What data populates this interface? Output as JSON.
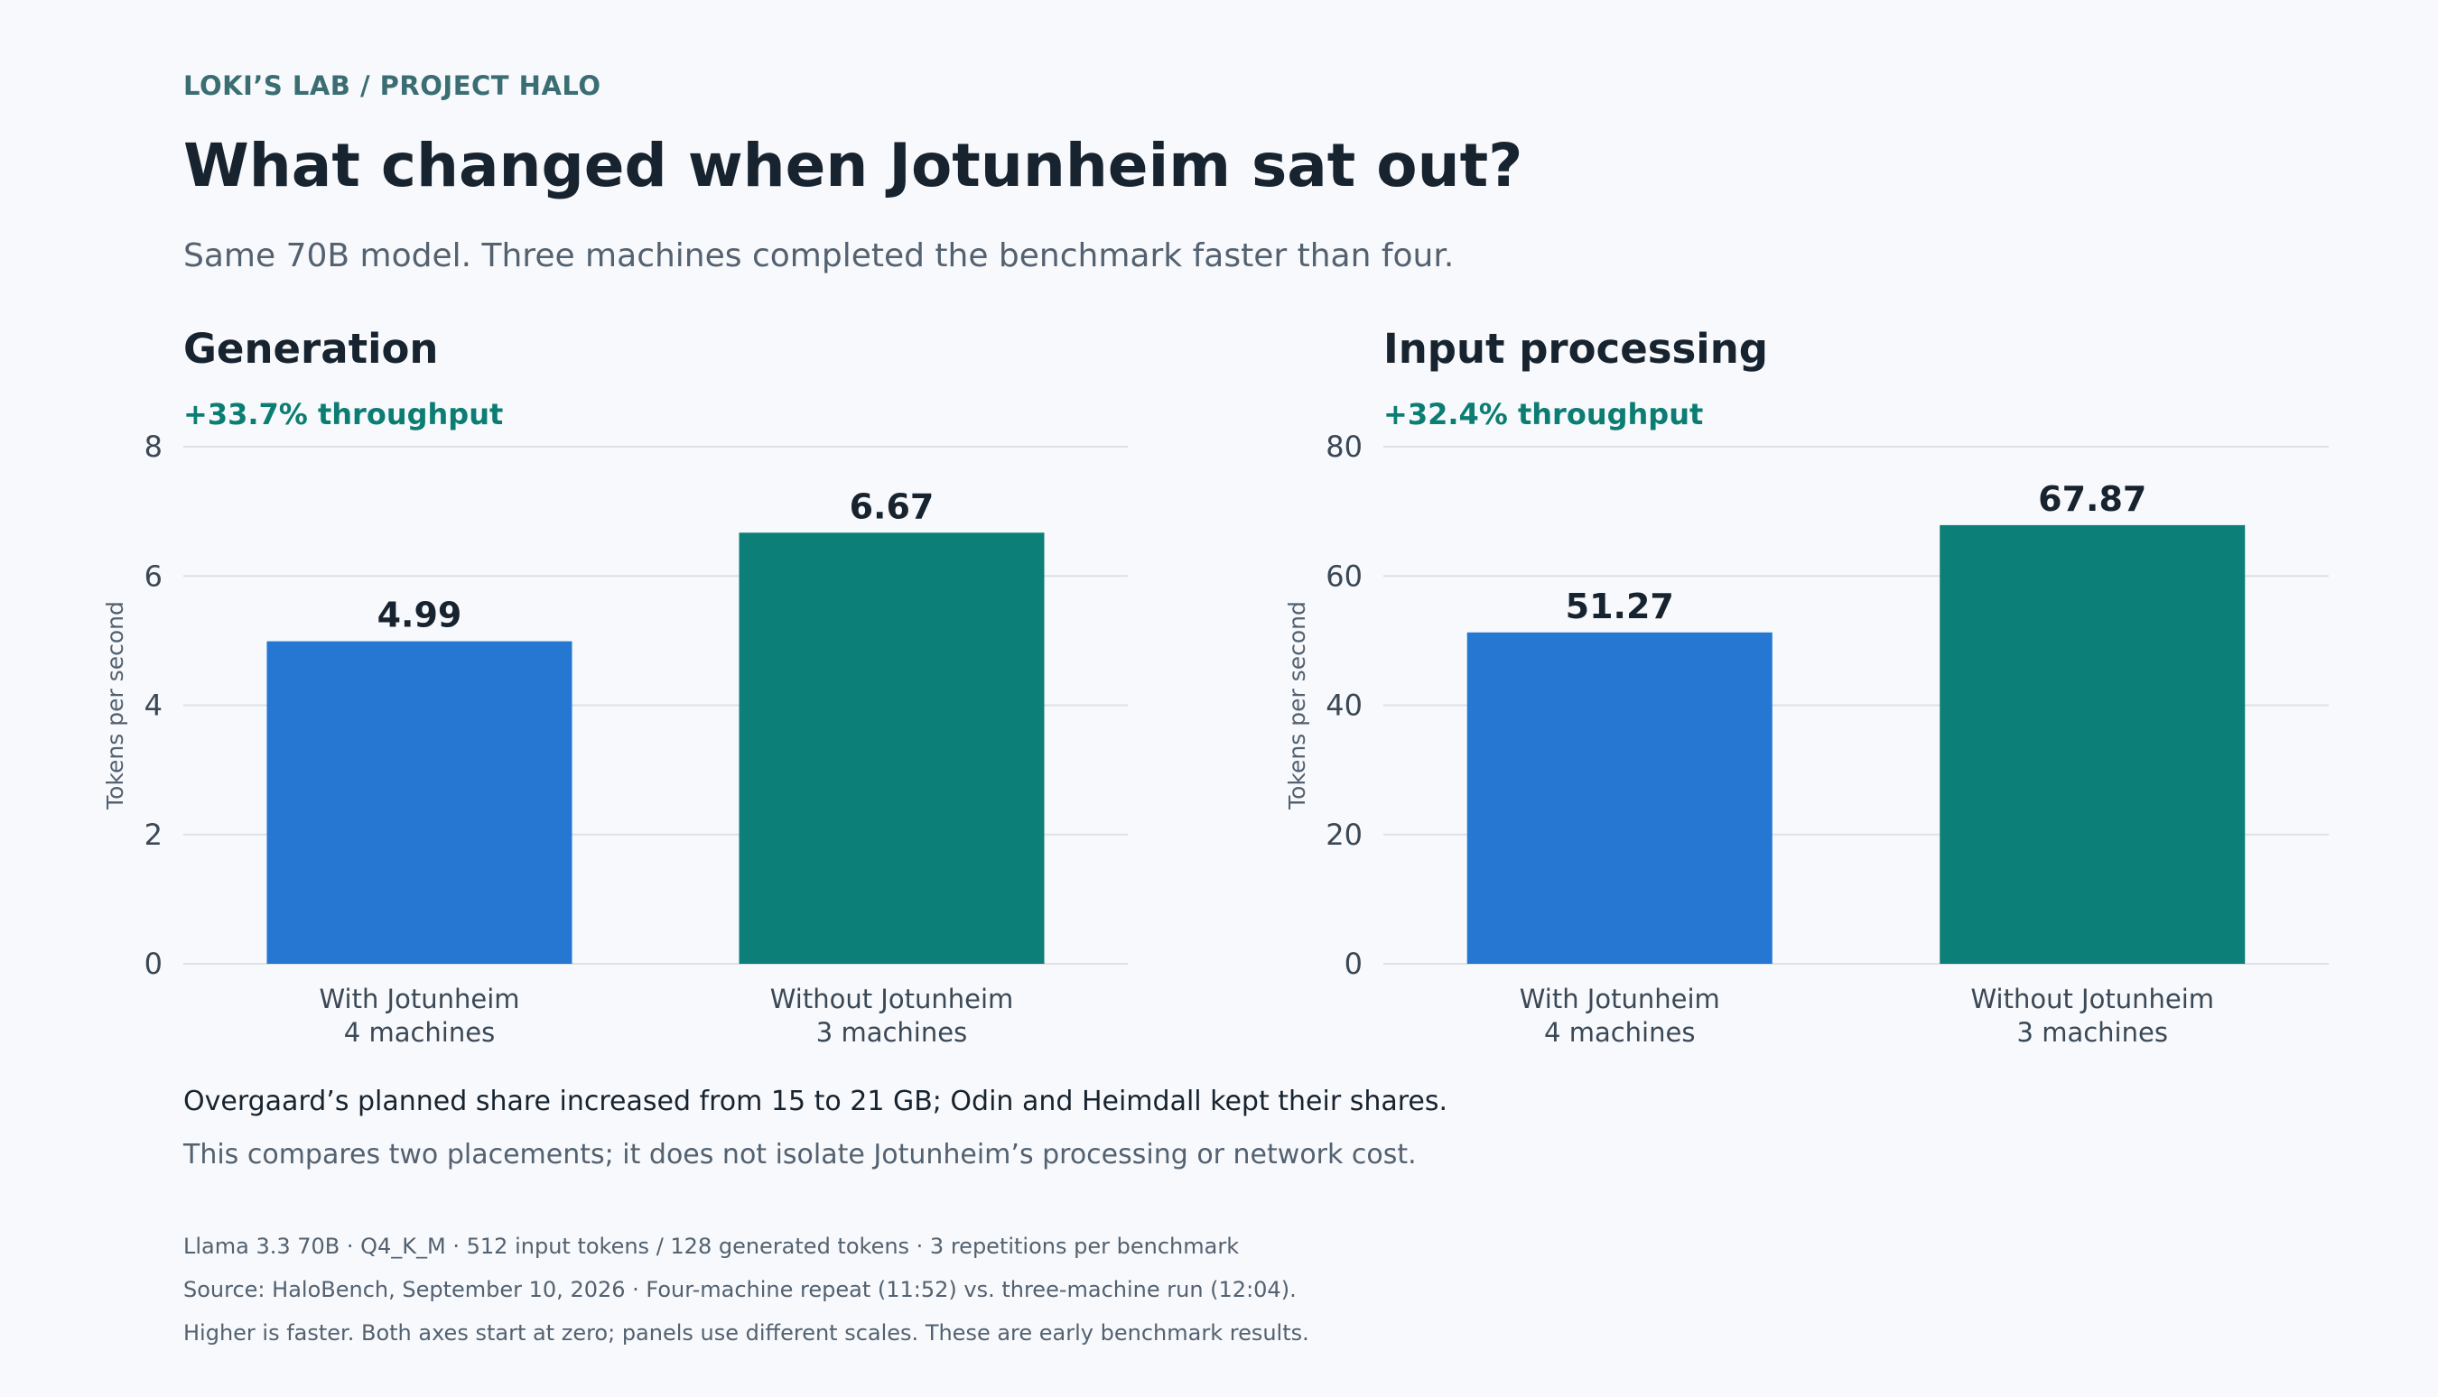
{
  "header": {
    "breadcrumb": "LOKI’S LAB  /  PROJECT HALO",
    "title": "What changed when Jotunheim sat out?",
    "subtitle": "Same 70B model. Three machines completed the benchmark faster than four."
  },
  "chart_data": [
    {
      "type": "bar",
      "title": "Generation",
      "annotation": "+33.7% throughput",
      "ylabel": "Tokens per second",
      "ylim": [
        0,
        8
      ],
      "yticks": [
        0,
        2,
        4,
        6,
        8
      ],
      "categories": [
        {
          "line1": "With Jotunheim",
          "line2": "4 machines"
        },
        {
          "line1": "Without Jotunheim",
          "line2": "3 machines"
        }
      ],
      "values": [
        4.99,
        6.67
      ],
      "value_labels": [
        "4.99",
        "6.67"
      ],
      "colors": [
        "#2577d1",
        "#0b7f78"
      ],
      "grid": true
    },
    {
      "type": "bar",
      "title": "Input processing",
      "annotation": "+32.4% throughput",
      "ylabel": "Tokens per second",
      "ylim": [
        0,
        80
      ],
      "yticks": [
        0,
        20,
        40,
        60,
        80
      ],
      "categories": [
        {
          "line1": "With Jotunheim",
          "line2": "4 machines"
        },
        {
          "line1": "Without Jotunheim",
          "line2": "3 machines"
        }
      ],
      "values": [
        51.27,
        67.87
      ],
      "value_labels": [
        "51.27",
        "67.87"
      ],
      "colors": [
        "#2577d1",
        "#0b7f78"
      ],
      "grid": true
    }
  ],
  "notes": {
    "line1": "Overgaard’s planned share increased from 15 to 21 GB; Odin and Heimdall kept their shares.",
    "line2": "This compares two placements; it does not isolate Jotunheim’s processing or network cost."
  },
  "footer": {
    "line1": "Llama 3.3 70B · Q4_K_M · 512 input tokens / 128 generated tokens · 3 repetitions per benchmark",
    "line2": "Source: HaloBench, September 10, 2026 · Four-machine repeat (11:52) vs. three-machine run (12:04).",
    "line3": "Higher is faster. Both axes start at zero; panels use different scales. These are early benchmark results."
  },
  "colors": {
    "background": "#f7f9fc",
    "accent_teal": "#0b7d72",
    "bar_blue": "#2577d1",
    "bar_teal": "#0b7f78"
  }
}
